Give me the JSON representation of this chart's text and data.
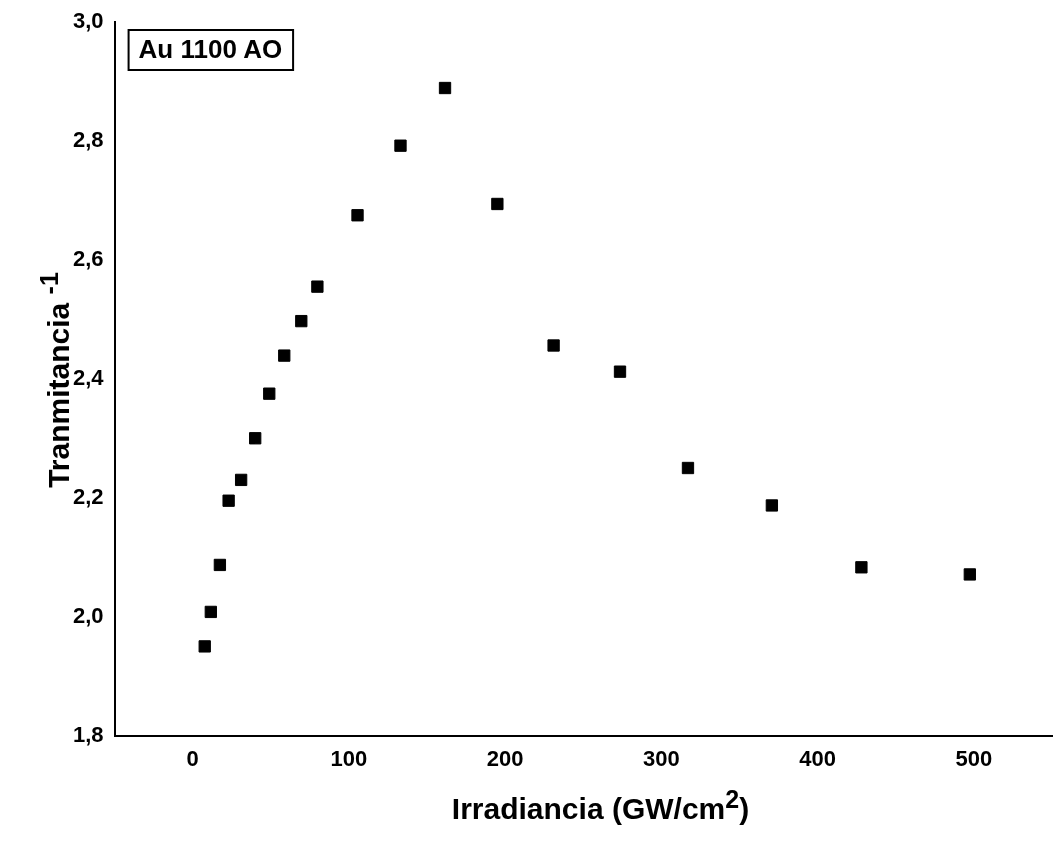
{
  "chart_data": {
    "type": "scatter",
    "xlabel": "Irradiancia (GW/cm$^{2}$)",
    "ylabel": "Tranmitancia $^{-1}$",
    "annotations": [
      "Au 1100 AO"
    ],
    "x": [
      7.7,
      11.6,
      17.4,
      23,
      31,
      40,
      49,
      58.6,
      69.5,
      79.8,
      105.5,
      133,
      161.5,
      195,
      231,
      273.5,
      317,
      370.7,
      428,
      497.4
    ],
    "series": [
      {
        "color": "#000000",
        "values": [
          1.95,
          2.008,
          2.087,
          2.195,
          2.23,
          2.3,
          2.375,
          2.439,
          2.497,
          2.555,
          2.675,
          2.792,
          2.889,
          2.694,
          2.456,
          2.412,
          2.25,
          2.187,
          2.083,
          2.071
        ]
      }
    ],
    "xlim": [
      -50,
      550
    ],
    "xticks": [
      0,
      100,
      200,
      300,
      400,
      500
    ],
    "ylim": [
      1.8,
      3.0
    ],
    "yticks": [
      {
        "value": 1.8,
        "label": "1,8"
      },
      {
        "value": 2.0,
        "label": "2,0"
      },
      {
        "value": 2.2,
        "label": "2,2"
      },
      {
        "value": 2.4,
        "label": "2,4"
      },
      {
        "value": 2.6,
        "label": "2,6"
      },
      {
        "value": 2.8,
        "label": "2,8"
      },
      {
        "value": 3.0,
        "label": "3,0"
      }
    ],
    "grid": false,
    "legend": false,
    "marker": "square"
  }
}
